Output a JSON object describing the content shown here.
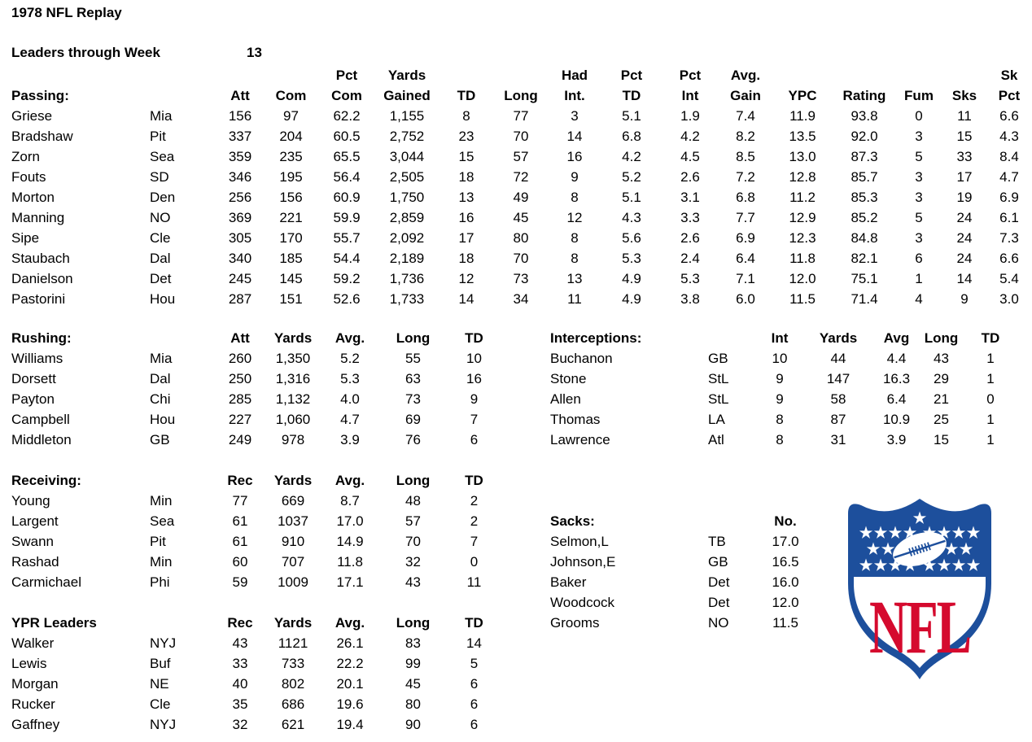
{
  "page": {
    "title": "1978 NFL Replay",
    "leaders_label": "Leaders through Week",
    "week": "13"
  },
  "passing": {
    "headers_top": [
      "",
      "",
      "",
      "",
      "Pct",
      "Yards",
      "",
      "",
      "Had",
      "Pct",
      "Pct",
      "Avg.",
      "",
      "",
      "",
      "",
      "Sk"
    ],
    "headers": [
      "Passing:",
      "",
      "Att",
      "Com",
      "Com",
      "Gained",
      "TD",
      "Long",
      "Int.",
      "TD",
      "Int",
      "Gain",
      "YPC",
      "Rating",
      "Fum",
      "Sks",
      "Pct"
    ],
    "rows": [
      [
        "Griese",
        "Mia",
        "156",
        "97",
        "62.2",
        "1,155",
        "8",
        "77",
        "3",
        "5.1",
        "1.9",
        "7.4",
        "11.9",
        "93.8",
        "0",
        "11",
        "6.6"
      ],
      [
        "Bradshaw",
        "Pit",
        "337",
        "204",
        "60.5",
        "2,752",
        "23",
        "70",
        "14",
        "6.8",
        "4.2",
        "8.2",
        "13.5",
        "92.0",
        "3",
        "15",
        "4.3"
      ],
      [
        "Zorn",
        "Sea",
        "359",
        "235",
        "65.5",
        "3,044",
        "15",
        "57",
        "16",
        "4.2",
        "4.5",
        "8.5",
        "13.0",
        "87.3",
        "5",
        "33",
        "8.4"
      ],
      [
        "Fouts",
        "SD",
        "346",
        "195",
        "56.4",
        "2,505",
        "18",
        "72",
        "9",
        "5.2",
        "2.6",
        "7.2",
        "12.8",
        "85.7",
        "3",
        "17",
        "4.7"
      ],
      [
        "Morton",
        "Den",
        "256",
        "156",
        "60.9",
        "1,750",
        "13",
        "49",
        "8",
        "5.1",
        "3.1",
        "6.8",
        "11.2",
        "85.3",
        "3",
        "19",
        "6.9"
      ],
      [
        "Manning",
        "NO",
        "369",
        "221",
        "59.9",
        "2,859",
        "16",
        "45",
        "12",
        "4.3",
        "3.3",
        "7.7",
        "12.9",
        "85.2",
        "5",
        "24",
        "6.1"
      ],
      [
        "Sipe",
        "Cle",
        "305",
        "170",
        "55.7",
        "2,092",
        "17",
        "80",
        "8",
        "5.6",
        "2.6",
        "6.9",
        "12.3",
        "84.8",
        "3",
        "24",
        "7.3"
      ],
      [
        "Staubach",
        "Dal",
        "340",
        "185",
        "54.4",
        "2,189",
        "18",
        "70",
        "8",
        "5.3",
        "2.4",
        "6.4",
        "11.8",
        "82.1",
        "6",
        "24",
        "6.6"
      ],
      [
        "Danielson",
        "Det",
        "245",
        "145",
        "59.2",
        "1,736",
        "12",
        "73",
        "13",
        "4.9",
        "5.3",
        "7.1",
        "12.0",
        "75.1",
        "1",
        "14",
        "5.4"
      ],
      [
        "Pastorini",
        "Hou",
        "287",
        "151",
        "52.6",
        "1,733",
        "14",
        "34",
        "11",
        "4.9",
        "3.8",
        "6.0",
        "11.5",
        "71.4",
        "4",
        "9",
        "3.0"
      ]
    ]
  },
  "rushing": {
    "headers": [
      "Rushing:",
      "",
      "Att",
      "Yards",
      "Avg.",
      "Long",
      "TD"
    ],
    "rows": [
      [
        "Williams",
        "Mia",
        "260",
        "1,350",
        "5.2",
        "55",
        "10"
      ],
      [
        "Dorsett",
        "Dal",
        "250",
        "1,316",
        "5.3",
        "63",
        "16"
      ],
      [
        "Payton",
        "Chi",
        "285",
        "1,132",
        "4.0",
        "73",
        "9"
      ],
      [
        "Campbell",
        "Hou",
        "227",
        "1,060",
        "4.7",
        "69",
        "7"
      ],
      [
        "Middleton",
        "GB",
        "249",
        "978",
        "3.9",
        "76",
        "6"
      ]
    ]
  },
  "interceptions": {
    "headers": [
      "Interceptions:",
      "",
      "Int",
      "Yards",
      "Avg",
      "Long",
      "TD"
    ],
    "rows": [
      [
        "Buchanon",
        "GB",
        "10",
        "44",
        "4.4",
        "43",
        "1"
      ],
      [
        "Stone",
        "StL",
        "9",
        "147",
        "16.3",
        "29",
        "1"
      ],
      [
        "Allen",
        "StL",
        "9",
        "58",
        "6.4",
        "21",
        "0"
      ],
      [
        "Thomas",
        "LA",
        "8",
        "87",
        "10.9",
        "25",
        "1"
      ],
      [
        "Lawrence",
        "Atl",
        "8",
        "31",
        "3.9",
        "15",
        "1"
      ]
    ]
  },
  "receiving": {
    "headers": [
      "Receiving:",
      "",
      "Rec",
      "Yards",
      "Avg.",
      "Long",
      "TD"
    ],
    "rows": [
      [
        "Young",
        "Min",
        "77",
        "669",
        "8.7",
        "48",
        "2"
      ],
      [
        "Largent",
        "Sea",
        "61",
        "1037",
        "17.0",
        "57",
        "2"
      ],
      [
        "Swann",
        "Pit",
        "61",
        "910",
        "14.9",
        "70",
        "7"
      ],
      [
        "Rashad",
        "Min",
        "60",
        "707",
        "11.8",
        "32",
        "0"
      ],
      [
        "Carmichael",
        "Phi",
        "59",
        "1009",
        "17.1",
        "43",
        "11"
      ]
    ]
  },
  "sacks": {
    "headers": [
      "Sacks:",
      "",
      "No."
    ],
    "rows": [
      [
        "Selmon,L",
        "TB",
        "17.0"
      ],
      [
        "Johnson,E",
        "GB",
        "16.5"
      ],
      [
        "Baker",
        "Det",
        "16.0"
      ],
      [
        "Woodcock",
        "Det",
        "12.0"
      ],
      [
        "Grooms",
        "NO",
        "11.5"
      ]
    ]
  },
  "ypr": {
    "headers": [
      "YPR Leaders",
      "",
      "Rec",
      "Yards",
      "Avg.",
      "Long",
      "TD"
    ],
    "rows": [
      [
        "Walker",
        "NYJ",
        "43",
        "1121",
        "26.1",
        "83",
        "14"
      ],
      [
        "Lewis",
        "Buf",
        "33",
        "733",
        "22.2",
        "99",
        "5"
      ],
      [
        "Morgan",
        "NE",
        "40",
        "802",
        "20.1",
        "45",
        "6"
      ],
      [
        "Rucker",
        "Cle",
        "35",
        "686",
        "19.6",
        "80",
        "6"
      ],
      [
        "Gaffney",
        "NYJ",
        "32",
        "621",
        "19.4",
        "90",
        "6"
      ]
    ]
  },
  "logo": {
    "text": "NFL",
    "colors": {
      "blue": "#1d4f9c",
      "red": "#d50a2e",
      "white": "#ffffff"
    }
  }
}
